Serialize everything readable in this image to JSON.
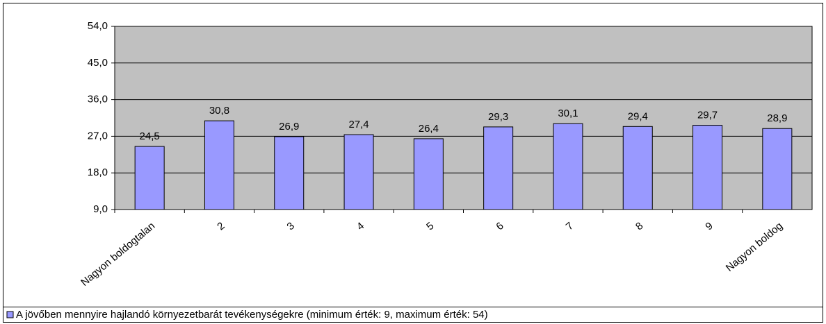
{
  "chart_data": {
    "type": "bar",
    "categories": [
      "Nagyon boldogtalan",
      "2",
      "3",
      "4",
      "5",
      "6",
      "7",
      "8",
      "9",
      "Nagyon boldog"
    ],
    "series": [
      {
        "name": "A jövőben mennyire hajlandó környezetbarát tevékenységekre (minimum érték: 9, maximum érték: 54)",
        "color": "#9999ff",
        "values": [
          24.5,
          30.8,
          26.9,
          27.4,
          26.4,
          29.3,
          30.1,
          29.4,
          29.7,
          28.9
        ],
        "value_labels": [
          "24,5",
          "30,8",
          "26,9",
          "27,4",
          "26,4",
          "29,3",
          "30,1",
          "29,4",
          "29,7",
          "28,9"
        ]
      }
    ],
    "ylim": [
      9,
      54
    ],
    "yticks": [
      {
        "value": 9,
        "label": "9,0"
      },
      {
        "value": 18,
        "label": "18,0"
      },
      {
        "value": 27,
        "label": "27,0"
      },
      {
        "value": 36,
        "label": "36,0"
      },
      {
        "value": 45,
        "label": "45,0"
      },
      {
        "value": 54,
        "label": "54,0"
      }
    ],
    "grid": true,
    "plot_background": "#c0c0c0",
    "legend": "bottom-left"
  }
}
